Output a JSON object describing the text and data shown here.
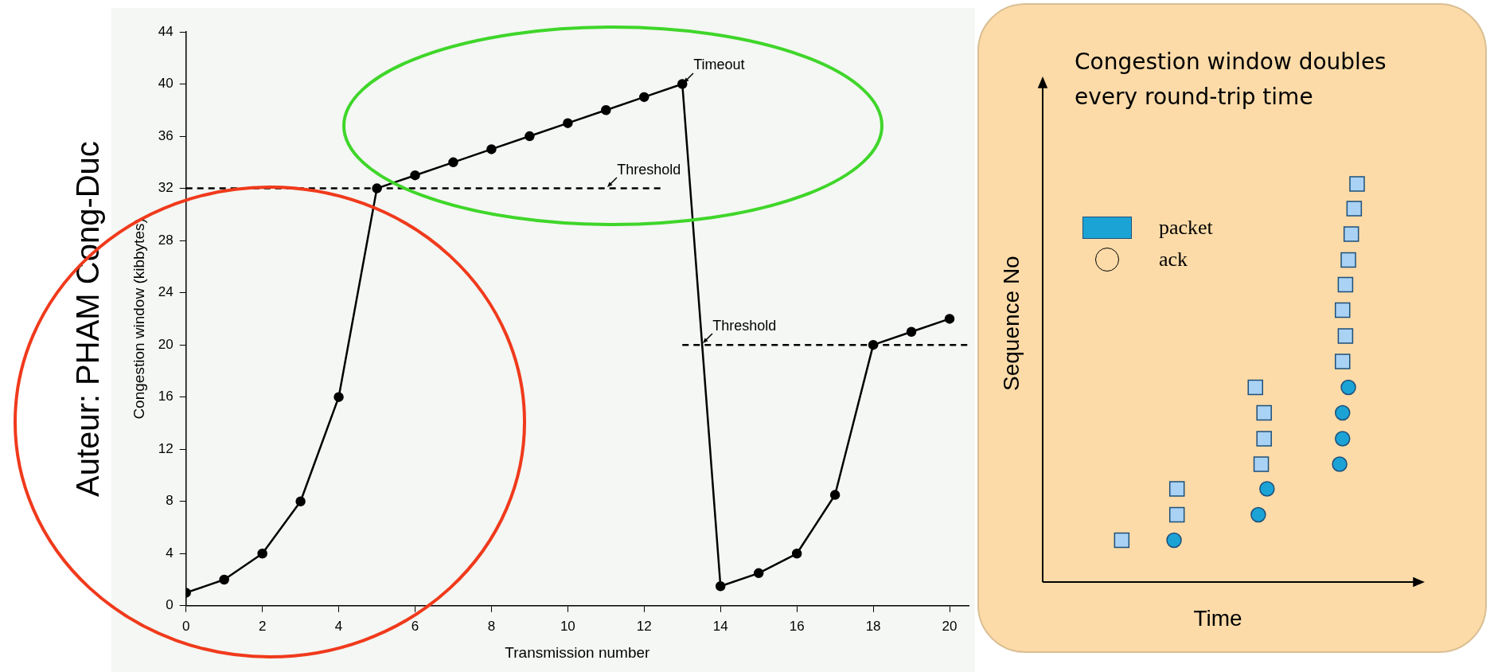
{
  "chart_data": [
    {
      "type": "line",
      "xlabel": "Transmission number",
      "ylabel": "Congestion window (kibbytes)",
      "x": [
        0,
        1,
        2,
        3,
        4,
        5,
        6,
        7,
        8,
        9,
        10,
        11,
        12,
        13,
        14,
        15,
        16,
        17,
        18,
        19,
        20
      ],
      "series": [
        {
          "color": "#000000",
          "values": [
            1,
            2,
            4,
            8,
            16,
            32,
            33,
            34,
            35,
            36,
            37,
            38,
            39,
            40,
            1.5,
            2.5,
            4,
            8.5,
            20,
            21,
            22
          ]
        },
        {
          "type": "line",
          "x": [
            0,
            12.5
          ],
          "values": [
            32,
            32
          ],
          "color": "#000000",
          "marker": "none",
          "line_style": "dashed"
        },
        {
          "type": "line",
          "x": [
            13,
            20.5
          ],
          "values": [
            20,
            20
          ],
          "color": "#000000",
          "marker": "none",
          "line_style": "dashed"
        }
      ],
      "xlim": [
        0,
        20.5
      ],
      "xticks": [
        0,
        2,
        4,
        6,
        8,
        10,
        12,
        14,
        16,
        18,
        20
      ],
      "ylim": [
        0,
        44
      ],
      "yticks": [
        0,
        4,
        8,
        12,
        16,
        20,
        24,
        28,
        32,
        36,
        40,
        44
      ],
      "grid": false,
      "legend": false,
      "marker": "circle",
      "line_style": "solid",
      "annotations": [
        {
          "text": "Timeout",
          "x": 13,
          "y": 40
        },
        {
          "text": "Threshold",
          "x": 11,
          "y": 32
        },
        {
          "text": "Threshold",
          "x": 13.5,
          "y": 20
        },
        "Auteur: PHAM Cong-Duc"
      ]
    },
    {
      "type": "other",
      "title": "Congestion window doubles every round-trip time",
      "xlabel": "Time",
      "ylabel": "Sequence No",
      "annotations": [
        "packet",
        "ack"
      ]
    }
  ]
}
